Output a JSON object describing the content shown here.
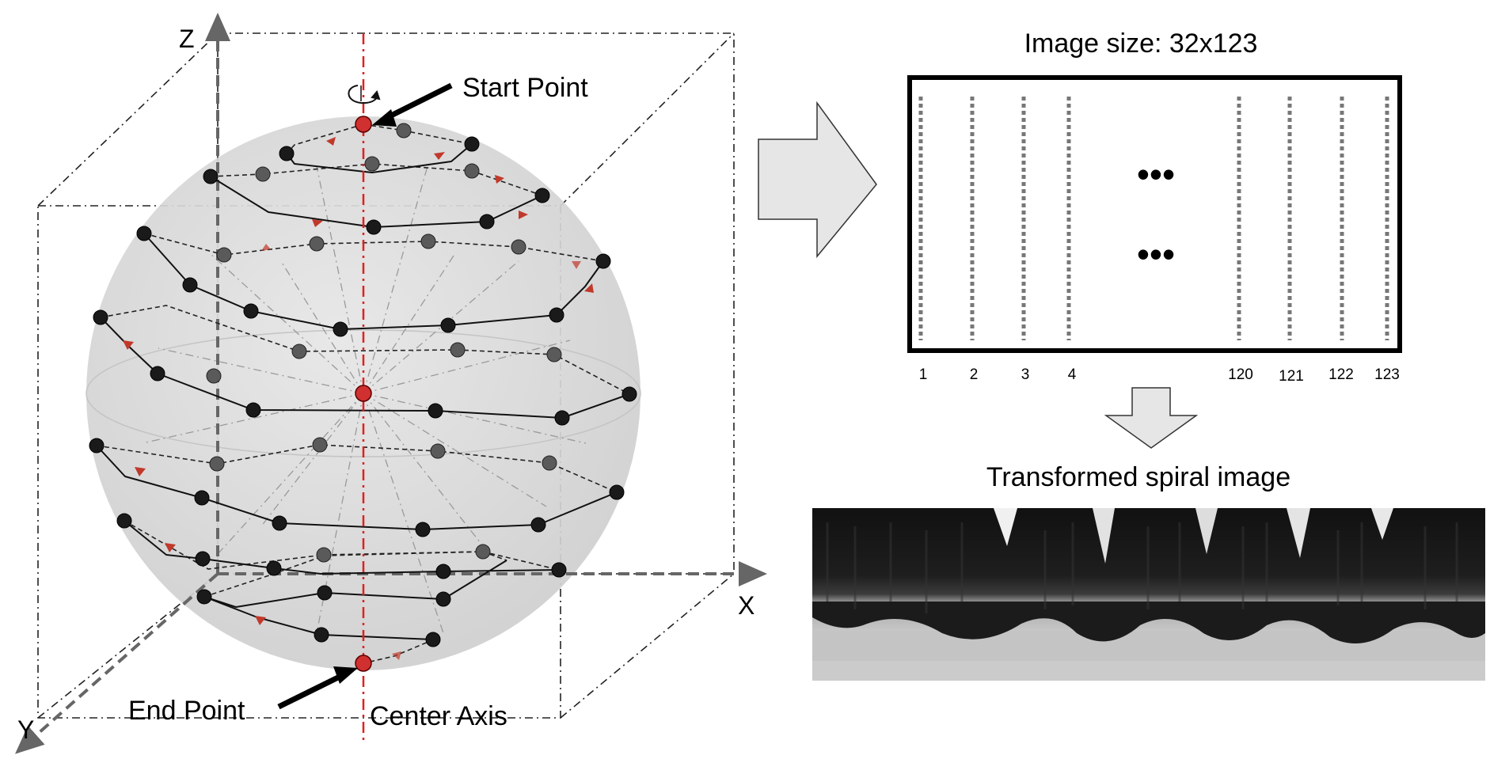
{
  "sphere": {
    "axes": {
      "z": "Z",
      "x": "X",
      "y": "Y"
    },
    "start_label": "Start Point",
    "end_label": "End Point",
    "axis_label": "Center Axis"
  },
  "grid": {
    "title": "Image size: 32x123",
    "columns": [
      "1",
      "2",
      "3",
      "4",
      "120",
      "121",
      "122",
      "123"
    ],
    "ellipsis_rows": [
      "•••",
      "•••"
    ]
  },
  "output": {
    "title": "Transformed spiral image"
  },
  "colors": {
    "point": "#1a1a1a",
    "point_back": "#5a5a5a",
    "marker": "#c0392b",
    "center_axis": "#e02020",
    "axis_arrow": "#666666",
    "sphere_fill": "#d9d9d9",
    "arrow_fill": "#e6e6e6"
  }
}
